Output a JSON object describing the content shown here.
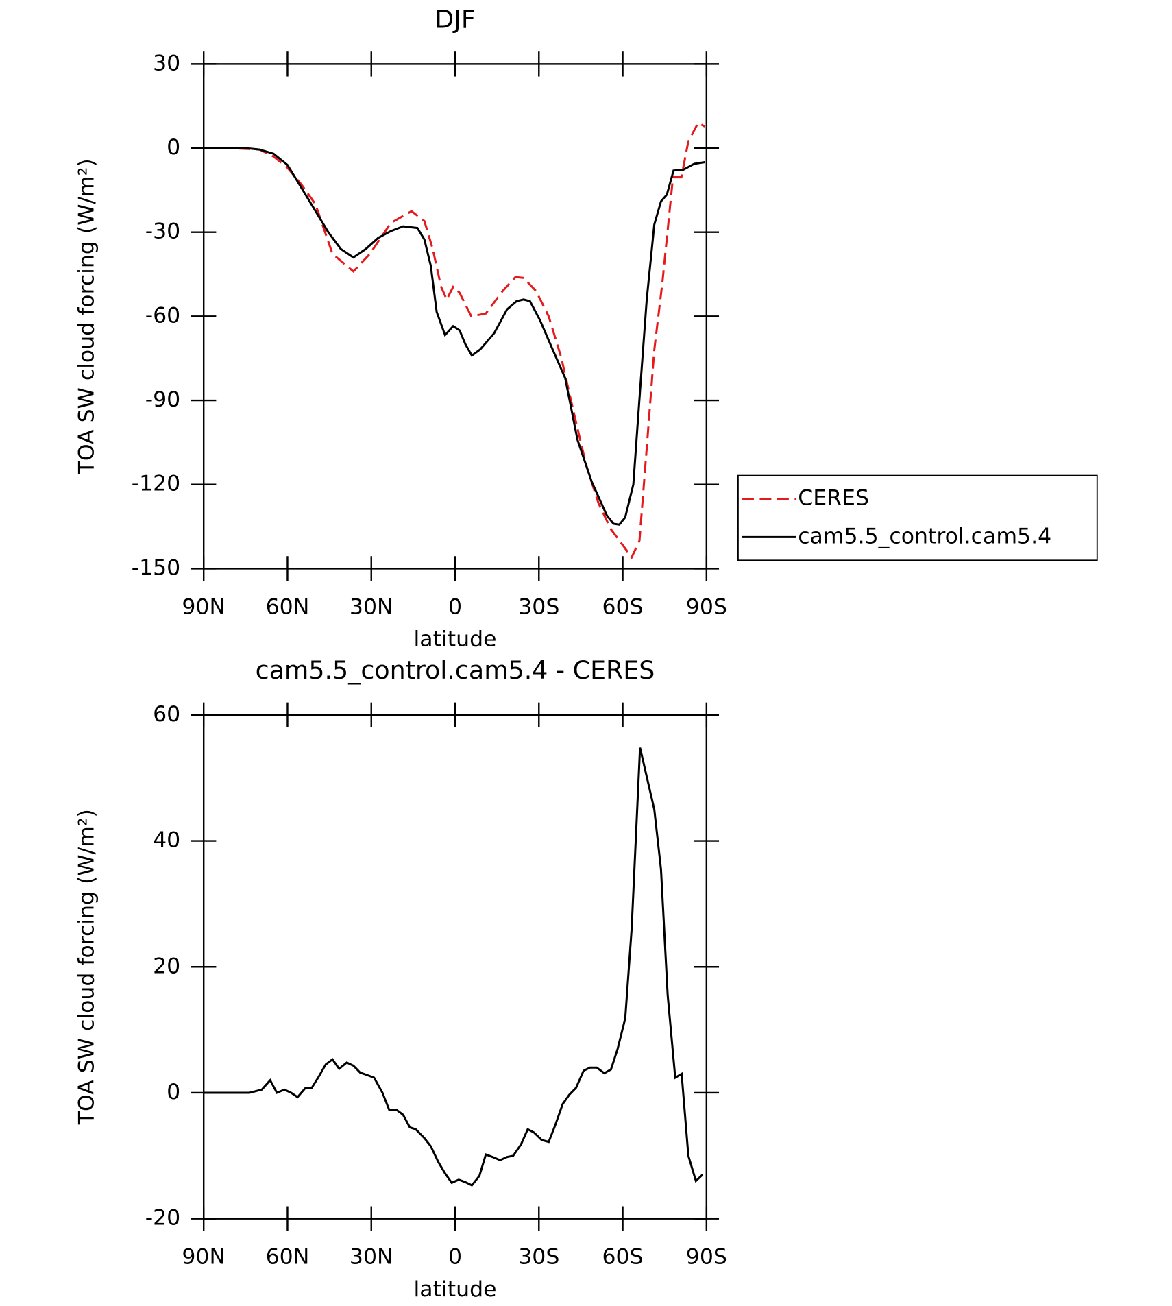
{
  "chart_data": [
    {
      "type": "line",
      "title": "DJF",
      "xlabel": "latitude",
      "ylabel": "TOA SW cloud forcing (W/m²)",
      "xlim": [
        90,
        -90
      ],
      "xticks": [
        {
          "value": 90,
          "label": "90N"
        },
        {
          "value": 60,
          "label": "60N"
        },
        {
          "value": 30,
          "label": "30N"
        },
        0,
        {
          "value": -30,
          "label": "30S"
        },
        {
          "value": -60,
          "label": "60S"
        },
        {
          "value": -90,
          "label": "90S"
        }
      ],
      "ylim": [
        -150,
        30
      ],
      "yticks": [
        30,
        0,
        -30,
        -60,
        -90,
        -120,
        -150
      ],
      "legend": "right",
      "series": [
        {
          "name": "CERES",
          "color": "#e41a1c",
          "line_style": "dashed",
          "x": [
            90,
            80,
            70,
            65,
            60,
            55,
            50,
            43.9,
            36.4,
            30.5,
            23,
            15.6,
            11,
            8,
            5,
            3,
            0.7,
            -1.6,
            -5.8,
            -11,
            -17,
            -21.6,
            -24.5,
            -29,
            -33.5,
            -38,
            -42.4,
            -46.9,
            -51.3,
            -55.8,
            -60.3,
            -63.2,
            -66,
            -68.6,
            -71.3,
            -74.2,
            -78,
            -81,
            -83.5,
            -87,
            -89.4
          ],
          "values": [
            0,
            0,
            -0.5,
            -3,
            -7,
            -13,
            -20,
            -37.7,
            -44,
            -37.7,
            -26.7,
            -22.5,
            -26,
            -36,
            -49.5,
            -54,
            -49.5,
            -51.6,
            -60,
            -59,
            -51,
            -46,
            -46.3,
            -51,
            -60,
            -74.7,
            -94,
            -113,
            -126.6,
            -136,
            -142,
            -146,
            -140,
            -107,
            -72,
            -48,
            -10.4,
            -10.4,
            2.4,
            9,
            7.7
          ]
        },
        {
          "name": "cam5.5_control.cam5.4",
          "color": "#000000",
          "line_style": "solid",
          "x": [
            90,
            75,
            70,
            65,
            60,
            52.8,
            45.4,
            40.9,
            36.4,
            32,
            27.5,
            23,
            18.6,
            13.5,
            11,
            8.7,
            6.6,
            3.6,
            0.7,
            -1.6,
            -3.7,
            -6,
            -9,
            -14,
            -18.6,
            -22,
            -24.5,
            -26.8,
            -30.4,
            -34.9,
            -39.4,
            -43.8,
            -48.9,
            -54.3,
            -56.7,
            -58.8,
            -60.9,
            -63.8,
            -66.2,
            -68.6,
            -71.3,
            -73.7,
            -75.8,
            -78.2,
            -81.7,
            -85.6,
            -89.4
          ],
          "values": [
            0,
            0,
            -0.5,
            -2,
            -6,
            -17.8,
            -30,
            -36,
            -39,
            -36,
            -32,
            -29.6,
            -27.9,
            -28.5,
            -32.6,
            -42,
            -58.4,
            -66.7,
            -63.5,
            -65,
            -70,
            -74,
            -71.8,
            -66,
            -57.5,
            -54.6,
            -54,
            -54.6,
            -61.4,
            -71.8,
            -82,
            -104,
            -119,
            -131,
            -134,
            -134.3,
            -131.7,
            -120,
            -86.6,
            -54,
            -27.3,
            -19,
            -16.6,
            -8,
            -7.7,
            -5.6,
            -5
          ]
        }
      ]
    },
    {
      "type": "line",
      "title": "cam5.5_control.cam5.4 - CERES",
      "xlabel": "latitude",
      "ylabel": "TOA SW cloud forcing (W/m²)",
      "xlim": [
        90,
        -90
      ],
      "xticks": [
        {
          "value": 90,
          "label": "90N"
        },
        {
          "value": 60,
          "label": "60N"
        },
        {
          "value": 30,
          "label": "30N"
        },
        0,
        {
          "value": -30,
          "label": "30S"
        },
        {
          "value": -60,
          "label": "60S"
        },
        {
          "value": -90,
          "label": "90S"
        }
      ],
      "ylim": [
        -20,
        60
      ],
      "yticks": [
        60,
        40,
        20,
        0,
        -20
      ],
      "series": [
        {
          "color": "#000000",
          "line_style": "solid",
          "x": [
            90,
            73.6,
            69.2,
            66.2,
            63.8,
            61.1,
            58.7,
            56.4,
            53.7,
            51.3,
            48.9,
            46.3,
            43.9,
            41.5,
            38.8,
            36.4,
            34,
            31.4,
            29,
            26,
            23.6,
            21,
            18.6,
            16.2,
            14.1,
            11,
            8.7,
            6,
            3.6,
            1.2,
            -1.3,
            -3.7,
            -6,
            -8.7,
            -11,
            -13.4,
            -16.1,
            -18.6,
            -20.8,
            -23.6,
            -26,
            -28.2,
            -31,
            -33.5,
            -35.8,
            -38.5,
            -40.9,
            -43.3,
            -46,
            -48.3,
            -50.7,
            -53.4,
            -55.8,
            -58.2,
            -60.9,
            -63.2,
            -66.2,
            -71.3,
            -73.7,
            -76.1,
            -78.8,
            -81.1,
            -83.5,
            -86.2,
            -88.6
          ],
          "values": [
            0,
            0,
            0.5,
            2,
            0,
            0.5,
            0,
            -0.7,
            0.7,
            0.8,
            2.5,
            4.5,
            5.3,
            3.8,
            4.8,
            4.3,
            3.2,
            2.8,
            2.4,
            0,
            -2.7,
            -2.7,
            -3.5,
            -5.5,
            -5.8,
            -7.2,
            -8.5,
            -11,
            -12.8,
            -14.3,
            -13.8,
            -14.2,
            -14.7,
            -13.2,
            -9.8,
            -10.2,
            -10.7,
            -10.2,
            -10,
            -8.2,
            -5.8,
            -6.3,
            -7.5,
            -7.8,
            -5.2,
            -1.8,
            -0.3,
            0.8,
            3.5,
            4,
            4,
            3.1,
            3.7,
            7,
            11.8,
            26,
            54.8,
            45,
            35.5,
            15.5,
            2.4,
            3,
            -10,
            -14,
            -13
          ]
        }
      ]
    }
  ]
}
